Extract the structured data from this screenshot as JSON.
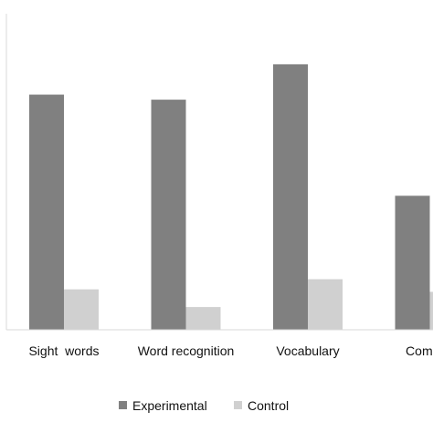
{
  "chart_data": {
    "type": "bar",
    "categories": [
      "Sight  words",
      "Word recognition",
      "Vocabulary",
      "Comprel"
    ],
    "series": [
      {
        "name": "Experimental",
        "color": "#808080",
        "values": [
          9.3,
          9.1,
          10.5,
          5.3
        ]
      },
      {
        "name": "Control",
        "color": "#d0d0d0",
        "values": [
          1.6,
          0.9,
          2.0,
          1.5
        ]
      }
    ],
    "ylim": [
      0,
      12.5
    ],
    "grid": false,
    "legend_position": "bottom",
    "title": "",
    "xlabel": "",
    "ylabel": ""
  }
}
